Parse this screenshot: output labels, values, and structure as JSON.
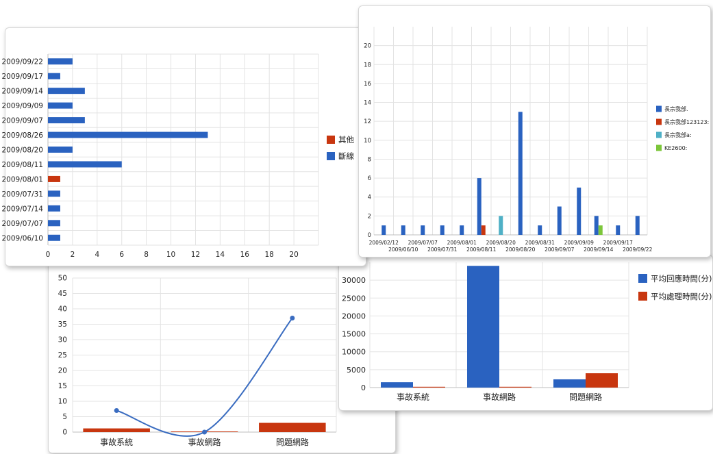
{
  "charts": {
    "line_chart": {
      "chart_data": {
        "type": "bar",
        "categories": [
          "事故系統",
          "事故網路",
          "問題網路"
        ],
        "series": [
          {
            "kind": "line",
            "values": [
              7,
              0,
              37
            ]
          },
          {
            "kind": "bar",
            "values": [
              1.2,
              0.2,
              3
            ]
          }
        ],
        "ylim": [
          0,
          50
        ],
        "yticks": [
          0,
          5,
          10,
          15,
          20,
          25,
          30,
          35,
          40,
          45,
          50
        ],
        "grid": true,
        "colors": {
          "line": "#3a6cc0",
          "bar": "#c8360f"
        }
      }
    },
    "hbar_chart": {
      "chart_data": {
        "type": "bar",
        "orientation": "horizontal",
        "categories": [
          "2009/09/22",
          "2009/09/17",
          "2009/09/14",
          "2009/09/09",
          "2009/09/07",
          "2009/08/26",
          "2009/08/20",
          "2009/08/11",
          "2009/08/01",
          "2009/07/31",
          "2009/07/14",
          "2009/07/07",
          "2009/06/10"
        ],
        "series": [
          {
            "name": "其他",
            "color": "#c8360f",
            "values": [
              null,
              null,
              null,
              null,
              null,
              null,
              null,
              null,
              1,
              null,
              null,
              null,
              null
            ]
          },
          {
            "name": "斷線",
            "color": "#2a62c0",
            "values": [
              2,
              1,
              3,
              2,
              3,
              13,
              2,
              6,
              null,
              1,
              1,
              1,
              1
            ]
          }
        ],
        "xlim": [
          0,
          22
        ],
        "xticks": [
          0,
          2,
          4,
          6,
          8,
          10,
          12,
          14,
          16,
          18,
          20
        ],
        "grid": true,
        "legend_position": "right"
      }
    },
    "column_chart": {
      "chart_data": {
        "type": "bar",
        "x": [
          "2009/02/12",
          "2009/06/10",
          "2009/07/07",
          "2009/07/31",
          "2009/08/01",
          "2009/08/11",
          "2009/08/20",
          "2009/08/20",
          "2009/08/31",
          "2009/09/07",
          "2009/09/09",
          "2009/09/14",
          "2009/09/17",
          "2009/09/22"
        ],
        "series": [
          {
            "name": "長宗我部.",
            "color": "#2a62c0",
            "values": [
              1,
              1,
              1,
              1,
              1,
              6,
              null,
              13,
              1,
              3,
              5,
              2,
              1,
              2
            ]
          },
          {
            "name": "長宗我部123123:",
            "color": "#c8360f",
            "values": [
              null,
              null,
              null,
              null,
              null,
              1,
              null,
              null,
              null,
              null,
              null,
              null,
              null,
              null
            ]
          },
          {
            "name": "長宗我部a:",
            "color": "#4fb0c6",
            "values": [
              null,
              null,
              null,
              null,
              null,
              null,
              2,
              null,
              null,
              null,
              null,
              null,
              null,
              null
            ]
          },
          {
            "name": "KE2600:",
            "color": "#7cc63a",
            "values": [
              null,
              null,
              null,
              null,
              null,
              null,
              null,
              null,
              null,
              null,
              null,
              1,
              null,
              null
            ]
          }
        ],
        "ylim": [
          0,
          22
        ],
        "yticks": [
          0,
          2,
          4,
          6,
          8,
          10,
          12,
          14,
          16,
          18,
          20
        ],
        "grid": true,
        "legend_position": "right"
      }
    },
    "grouped_chart": {
      "chart_data": {
        "type": "bar",
        "categories": [
          "事故系統",
          "事故網路",
          "問題網路"
        ],
        "series": [
          {
            "name": "平均回應時間(分)",
            "color": "#2a62c0",
            "values": [
              1500,
              34000,
              2300
            ]
          },
          {
            "name": "平均處理時間(分)",
            "color": "#c8360f",
            "values": [
              100,
              100,
              4000
            ]
          }
        ],
        "ylim": [
          0,
          35000
        ],
        "yticks": [
          0,
          5000,
          10000,
          15000,
          20000,
          25000,
          30000
        ],
        "grid": true,
        "legend_position": "right"
      }
    }
  }
}
